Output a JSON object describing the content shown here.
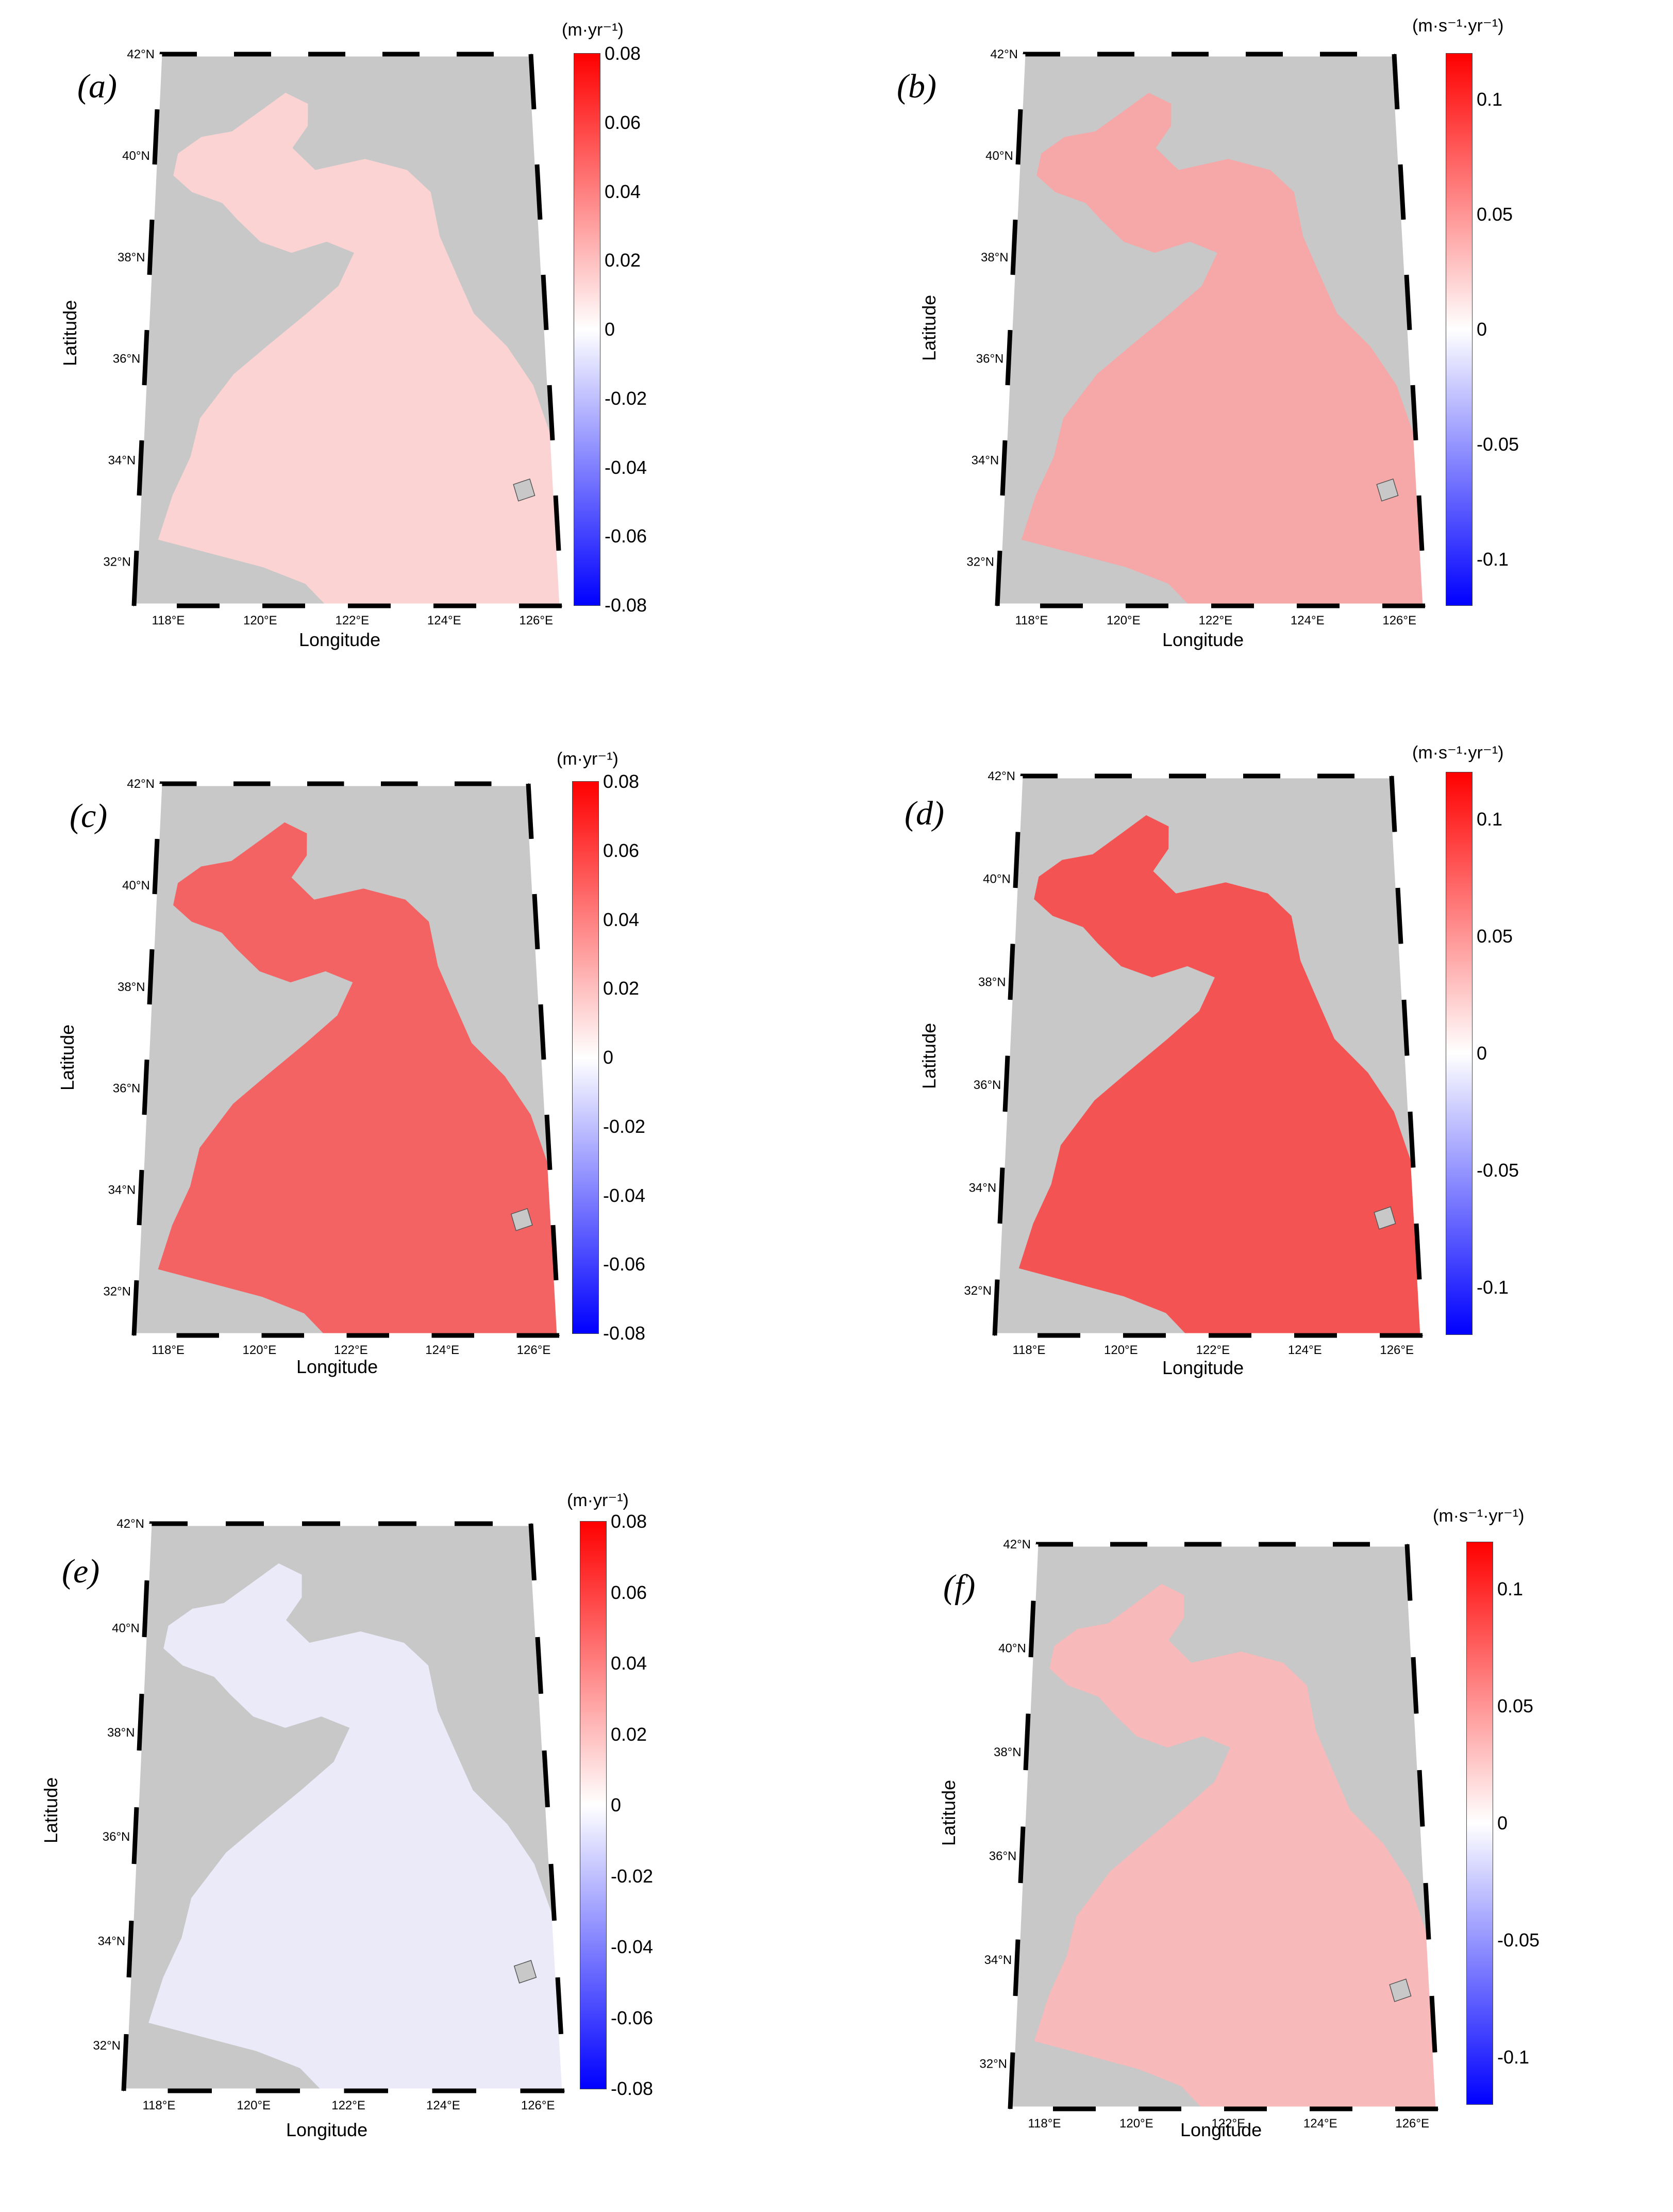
{
  "figure": {
    "axis_labels": {
      "x": "Longitude",
      "y": "Latitude"
    },
    "lon_ticks": [
      "118°E",
      "120°E",
      "122°E",
      "124°E",
      "126°E"
    ],
    "lat_ticks": [
      "42°N",
      "40°N",
      "38°N",
      "36°N",
      "34°N",
      "32°N"
    ],
    "colors": {
      "land": "#c8c8c8",
      "max": "#ff0000",
      "mid": "#ffffff",
      "min": "#0000ff"
    }
  },
  "panels": [
    {
      "label": "(a)",
      "unit": "(m·yr⁻¹)",
      "colorbar_ticks": [
        "0.08",
        "0.06",
        "0.04",
        "0.02",
        "0",
        "-0.02",
        "-0.04",
        "-0.06",
        "-0.08"
      ],
      "colorbar_range": [
        -0.08,
        0.08
      ],
      "sea_color": "#fbd3d3"
    },
    {
      "label": "(b)",
      "unit": "(m·s⁻¹·yr⁻¹)",
      "colorbar_ticks": [
        "0.1",
        "0.05",
        "0",
        "-0.05",
        "-0.1"
      ],
      "colorbar_range": [
        -0.12,
        0.12
      ],
      "sea_color": "#f6a7a7"
    },
    {
      "label": "(c)",
      "unit": "(m·yr⁻¹)",
      "colorbar_ticks": [
        "0.08",
        "0.06",
        "0.04",
        "0.02",
        "0",
        "-0.02",
        "-0.04",
        "-0.06",
        "-0.08"
      ],
      "colorbar_range": [
        -0.08,
        0.08
      ],
      "sea_color": "#f36363"
    },
    {
      "label": "(d)",
      "unit": "(m·s⁻¹·yr⁻¹)",
      "colorbar_ticks": [
        "0.1",
        "0.05",
        "0",
        "-0.05",
        "-0.1"
      ],
      "colorbar_range": [
        -0.12,
        0.12
      ],
      "sea_color": "#f45353"
    },
    {
      "label": "(e)",
      "unit": "(m·yr⁻¹)",
      "colorbar_ticks": [
        "0.08",
        "0.06",
        "0.04",
        "0.02",
        "0",
        "-0.02",
        "-0.04",
        "-0.06",
        "-0.08"
      ],
      "colorbar_range": [
        -0.08,
        0.08
      ],
      "sea_color": "#ebeaf9"
    },
    {
      "label": "(f)",
      "unit": "(m·s⁻¹·yr⁻¹)",
      "colorbar_ticks": [
        "0.1",
        "0.05",
        "0",
        "-0.05",
        "-0.1"
      ],
      "colorbar_range": [
        -0.12,
        0.12
      ],
      "sea_color": "#f7b9b9"
    }
  ]
}
